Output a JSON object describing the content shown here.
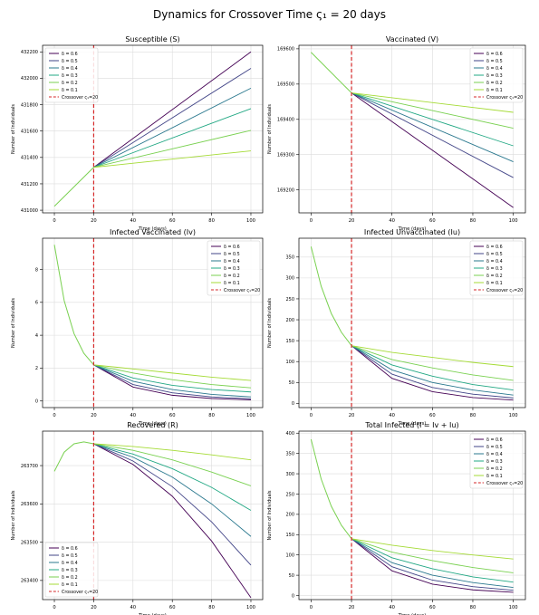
{
  "figure": {
    "title": "Dynamics for Crossover Time ς₁ = 20 days"
  },
  "palette": [
    "#440154",
    "#414487",
    "#2a788e",
    "#22a884",
    "#7ad151",
    "#a5db36"
  ],
  "crossover_color": "#d62728",
  "chart_data": [
    {
      "type": "line",
      "title": "Susceptible (S)",
      "xlabel": "Time (days)",
      "ylabel": "Number of Individuals",
      "xlim": [
        -6,
        106
      ],
      "ylim": [
        430980,
        432250
      ],
      "xticks": [
        0,
        20,
        40,
        60,
        80,
        100
      ],
      "yticks": [
        431000,
        431200,
        431400,
        431600,
        431800,
        432000,
        432200
      ],
      "ytick_labels": [
        "431000",
        "431200",
        "431400",
        "431600",
        "431800",
        "432000",
        "432200"
      ],
      "grid": true,
      "legend_position": "upper-left",
      "crossover": {
        "x": 20,
        "label": "Crossover ς₁=20"
      },
      "pre": {
        "x": [
          0,
          20
        ],
        "y": [
          431030,
          431325
        ]
      },
      "series": [
        {
          "name": "δ = 0.6",
          "x": [
            20,
            100
          ],
          "y": [
            431325,
            432200
          ]
        },
        {
          "name": "δ = 0.5",
          "x": [
            20,
            100
          ],
          "y": [
            431325,
            432075
          ]
        },
        {
          "name": "δ = 0.4",
          "x": [
            20,
            100
          ],
          "y": [
            431325,
            431925
          ]
        },
        {
          "name": "δ = 0.3",
          "x": [
            20,
            100
          ],
          "y": [
            431325,
            431770
          ]
        },
        {
          "name": "δ = 0.2",
          "x": [
            20,
            100
          ],
          "y": [
            431325,
            431605
          ]
        },
        {
          "name": "δ = 0.1",
          "x": [
            20,
            100
          ],
          "y": [
            431325,
            431450
          ]
        }
      ]
    },
    {
      "type": "line",
      "title": "Vaccinated (V)",
      "xlabel": "Time (days)",
      "ylabel": "Number of Individuals",
      "xlim": [
        -6,
        106
      ],
      "ylim": [
        169135,
        169610
      ],
      "xticks": [
        0,
        20,
        40,
        60,
        80,
        100
      ],
      "yticks": [
        169200,
        169300,
        169400,
        169500,
        169600
      ],
      "ytick_labels": [
        "169200",
        "169300",
        "169400",
        "169500",
        "169600"
      ],
      "grid": true,
      "legend_position": "upper-right",
      "crossover": {
        "x": 20,
        "label": "Crossover ς₁=20"
      },
      "pre": {
        "x": [
          0,
          20
        ],
        "y": [
          169590,
          169475
        ]
      },
      "series": [
        {
          "name": "δ = 0.6",
          "x": [
            20,
            100
          ],
          "y": [
            169475,
            169150
          ]
        },
        {
          "name": "δ = 0.5",
          "x": [
            20,
            100
          ],
          "y": [
            169475,
            169235
          ]
        },
        {
          "name": "δ = 0.4",
          "x": [
            20,
            100
          ],
          "y": [
            169475,
            169280
          ]
        },
        {
          "name": "δ = 0.3",
          "x": [
            20,
            100
          ],
          "y": [
            169475,
            169325
          ]
        },
        {
          "name": "δ = 0.2",
          "x": [
            20,
            100
          ],
          "y": [
            169475,
            169375
          ]
        },
        {
          "name": "δ = 0.1",
          "x": [
            20,
            100
          ],
          "y": [
            169475,
            169420
          ]
        }
      ]
    },
    {
      "type": "line",
      "title": "Infected Vaccinated (Iv)",
      "xlabel": "Time (days)",
      "ylabel": "Number of Individuals",
      "xlim": [
        -6,
        106
      ],
      "ylim": [
        -0.4,
        9.9
      ],
      "xticks": [
        0,
        20,
        40,
        60,
        80,
        100
      ],
      "yticks": [
        0,
        2,
        4,
        6,
        8
      ],
      "ytick_labels": [
        "0",
        "2",
        "4",
        "6",
        "8"
      ],
      "grid": true,
      "legend_position": "upper-right",
      "crossover": {
        "x": 20,
        "label": "Crossover ς₁=20"
      },
      "pre": {
        "x": [
          0,
          5,
          10,
          15,
          20
        ],
        "y": [
          9.5,
          6.1,
          4.1,
          2.9,
          2.2
        ]
      },
      "series": [
        {
          "name": "δ = 0.6",
          "x": [
            20,
            40,
            60,
            80,
            100
          ],
          "y": [
            2.2,
            0.85,
            0.35,
            0.15,
            0.07
          ]
        },
        {
          "name": "δ = 0.5",
          "x": [
            20,
            40,
            60,
            80,
            100
          ],
          "y": [
            2.2,
            1.0,
            0.5,
            0.25,
            0.13
          ]
        },
        {
          "name": "δ = 0.4",
          "x": [
            20,
            40,
            60,
            80,
            100
          ],
          "y": [
            2.2,
            1.2,
            0.7,
            0.4,
            0.25
          ]
        },
        {
          "name": "δ = 0.3",
          "x": [
            20,
            40,
            60,
            80,
            100
          ],
          "y": [
            2.2,
            1.4,
            0.95,
            0.7,
            0.55
          ]
        },
        {
          "name": "δ = 0.2",
          "x": [
            20,
            40,
            60,
            80,
            100
          ],
          "y": [
            2.2,
            1.7,
            1.3,
            1.0,
            0.8
          ]
        },
        {
          "name": "δ = 0.1",
          "x": [
            20,
            40,
            60,
            80,
            100
          ],
          "y": [
            2.2,
            1.95,
            1.7,
            1.45,
            1.25
          ]
        }
      ]
    },
    {
      "type": "line",
      "title": "Infected Unvaccinated (Iu)",
      "xlabel": "Time (days)",
      "ylabel": "Number of Individuals",
      "xlim": [
        -6,
        106
      ],
      "ylim": [
        -10,
        395
      ],
      "xticks": [
        0,
        20,
        40,
        60,
        80,
        100
      ],
      "yticks": [
        0,
        50,
        100,
        150,
        200,
        250,
        300,
        350
      ],
      "ytick_labels": [
        "0",
        "50",
        "100",
        "150",
        "200",
        "250",
        "300",
        "350"
      ],
      "grid": true,
      "legend_position": "upper-right",
      "crossover": {
        "x": 20,
        "label": "Crossover ς₁=20"
      },
      "pre": {
        "x": [
          0,
          5,
          10,
          15,
          20
        ],
        "y": [
          375,
          280,
          215,
          170,
          138
        ]
      },
      "series": [
        {
          "name": "δ = 0.6",
          "x": [
            20,
            40,
            60,
            80,
            100
          ],
          "y": [
            138,
            60,
            28,
            14,
            8
          ]
        },
        {
          "name": "δ = 0.5",
          "x": [
            20,
            40,
            60,
            80,
            100
          ],
          "y": [
            138,
            70,
            38,
            22,
            13
          ]
        },
        {
          "name": "δ = 0.4",
          "x": [
            20,
            40,
            60,
            80,
            100
          ],
          "y": [
            138,
            80,
            50,
            32,
            20
          ]
        },
        {
          "name": "δ = 0.3",
          "x": [
            20,
            40,
            60,
            80,
            100
          ],
          "y": [
            138,
            92,
            65,
            45,
            32
          ]
        },
        {
          "name": "δ = 0.2",
          "x": [
            20,
            40,
            60,
            80,
            100
          ],
          "y": [
            138,
            105,
            85,
            68,
            55
          ]
        },
        {
          "name": "δ = 0.1",
          "x": [
            20,
            40,
            60,
            80,
            100
          ],
          "y": [
            138,
            122,
            110,
            98,
            88
          ]
        }
      ]
    },
    {
      "type": "line",
      "title": "Recovered (R)",
      "xlabel": "Time (days)",
      "ylabel": "Number of Individuals",
      "xlim": [
        -6,
        106
      ],
      "ylim": [
        263350,
        263790
      ],
      "xticks": [
        0,
        20,
        40,
        60,
        80,
        100
      ],
      "yticks": [
        263400,
        263500,
        263600,
        263700
      ],
      "ytick_labels": [
        "263400",
        "263500",
        "263600",
        "263700"
      ],
      "grid": true,
      "legend_position": "lower-left",
      "crossover": {
        "x": 20,
        "label": "Crossover ς₁=20"
      },
      "pre": {
        "x": [
          0,
          5,
          10,
          15,
          20
        ],
        "y": [
          263685,
          263735,
          263757,
          263762,
          263757
        ]
      },
      "series": [
        {
          "name": "δ = 0.6",
          "x": [
            20,
            40,
            60,
            80,
            100
          ],
          "y": [
            263757,
            263703,
            263620,
            263503,
            263355
          ]
        },
        {
          "name": "δ = 0.5",
          "x": [
            20,
            40,
            60,
            80,
            100
          ],
          "y": [
            263757,
            263712,
            263645,
            263553,
            263440
          ]
        },
        {
          "name": "δ = 0.4",
          "x": [
            20,
            40,
            60,
            80,
            100
          ],
          "y": [
            263757,
            263722,
            263670,
            263600,
            263515
          ]
        },
        {
          "name": "δ = 0.3",
          "x": [
            20,
            40,
            60,
            80,
            100
          ],
          "y": [
            263757,
            263730,
            263692,
            263643,
            263583
          ]
        },
        {
          "name": "δ = 0.2",
          "x": [
            20,
            40,
            60,
            80,
            100
          ],
          "y": [
            263757,
            263740,
            263715,
            263683,
            263647
          ]
        },
        {
          "name": "δ = 0.1",
          "x": [
            20,
            40,
            60,
            80,
            100
          ],
          "y": [
            263757,
            263750,
            263740,
            263728,
            263715
          ]
        }
      ]
    },
    {
      "type": "line",
      "title": "Total Infected (I = Iv + Iu)",
      "xlabel": "Time (days)",
      "ylabel": "Number of Individuals",
      "xlim": [
        -6,
        106
      ],
      "ylim": [
        -10,
        405
      ],
      "xticks": [
        0,
        20,
        40,
        60,
        80,
        100
      ],
      "yticks": [
        0,
        50,
        100,
        150,
        200,
        250,
        300,
        350,
        400
      ],
      "ytick_labels": [
        "0",
        "50",
        "100",
        "150",
        "200",
        "250",
        "300",
        "350",
        "400"
      ],
      "grid": true,
      "legend_position": "upper-right",
      "crossover": {
        "x": 20,
        "label": "Crossover ς₁=20"
      },
      "pre": {
        "x": [
          0,
          5,
          10,
          15,
          20
        ],
        "y": [
          385,
          287,
          220,
          173,
          140
        ]
      },
      "series": [
        {
          "name": "δ = 0.6",
          "x": [
            20,
            40,
            60,
            80,
            100
          ],
          "y": [
            140,
            61,
            28,
            14,
            8
          ]
        },
        {
          "name": "δ = 0.5",
          "x": [
            20,
            40,
            60,
            80,
            100
          ],
          "y": [
            140,
            71,
            38,
            22,
            13
          ]
        },
        {
          "name": "δ = 0.4",
          "x": [
            20,
            40,
            60,
            80,
            100
          ],
          "y": [
            140,
            81,
            50,
            32,
            20
          ]
        },
        {
          "name": "δ = 0.3",
          "x": [
            20,
            40,
            60,
            80,
            100
          ],
          "y": [
            140,
            93,
            66,
            46,
            33
          ]
        },
        {
          "name": "δ = 0.2",
          "x": [
            20,
            40,
            60,
            80,
            100
          ],
          "y": [
            140,
            107,
            86,
            69,
            56
          ]
        },
        {
          "name": "δ = 0.1",
          "x": [
            20,
            40,
            60,
            80,
            100
          ],
          "y": [
            140,
            124,
            111,
            100,
            90
          ]
        }
      ]
    }
  ]
}
